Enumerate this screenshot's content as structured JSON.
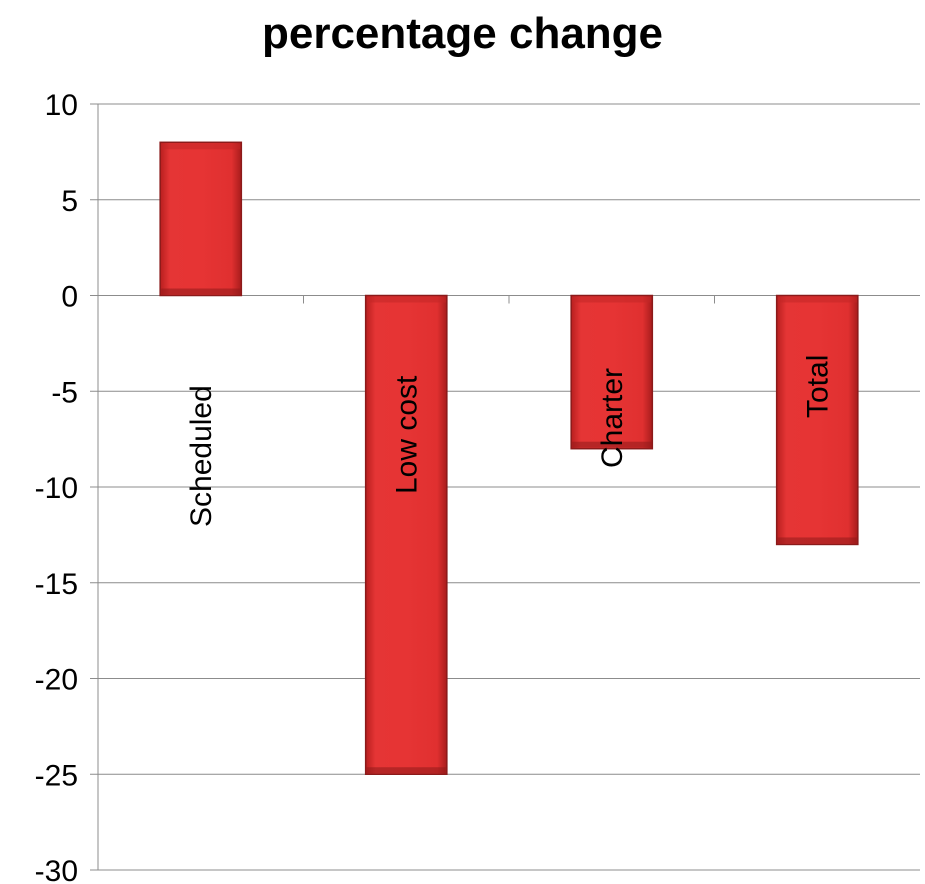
{
  "chart_data": {
    "type": "bar",
    "title": "percentage change",
    "xlabel": "",
    "ylabel": "",
    "categories": [
      "Scheduled",
      "Low cost",
      "Charter",
      "Total"
    ],
    "values": [
      8,
      -25,
      -8,
      -13
    ],
    "ylim": [
      -30,
      10
    ],
    "yticks": [
      "10",
      "5",
      "0",
      "-5",
      "-10",
      "-15",
      "-20",
      "-25",
      "-30"
    ],
    "grid": true,
    "bar_color": "#e03030",
    "bar_edge_color": "#8b1a1a",
    "legend": "none"
  }
}
